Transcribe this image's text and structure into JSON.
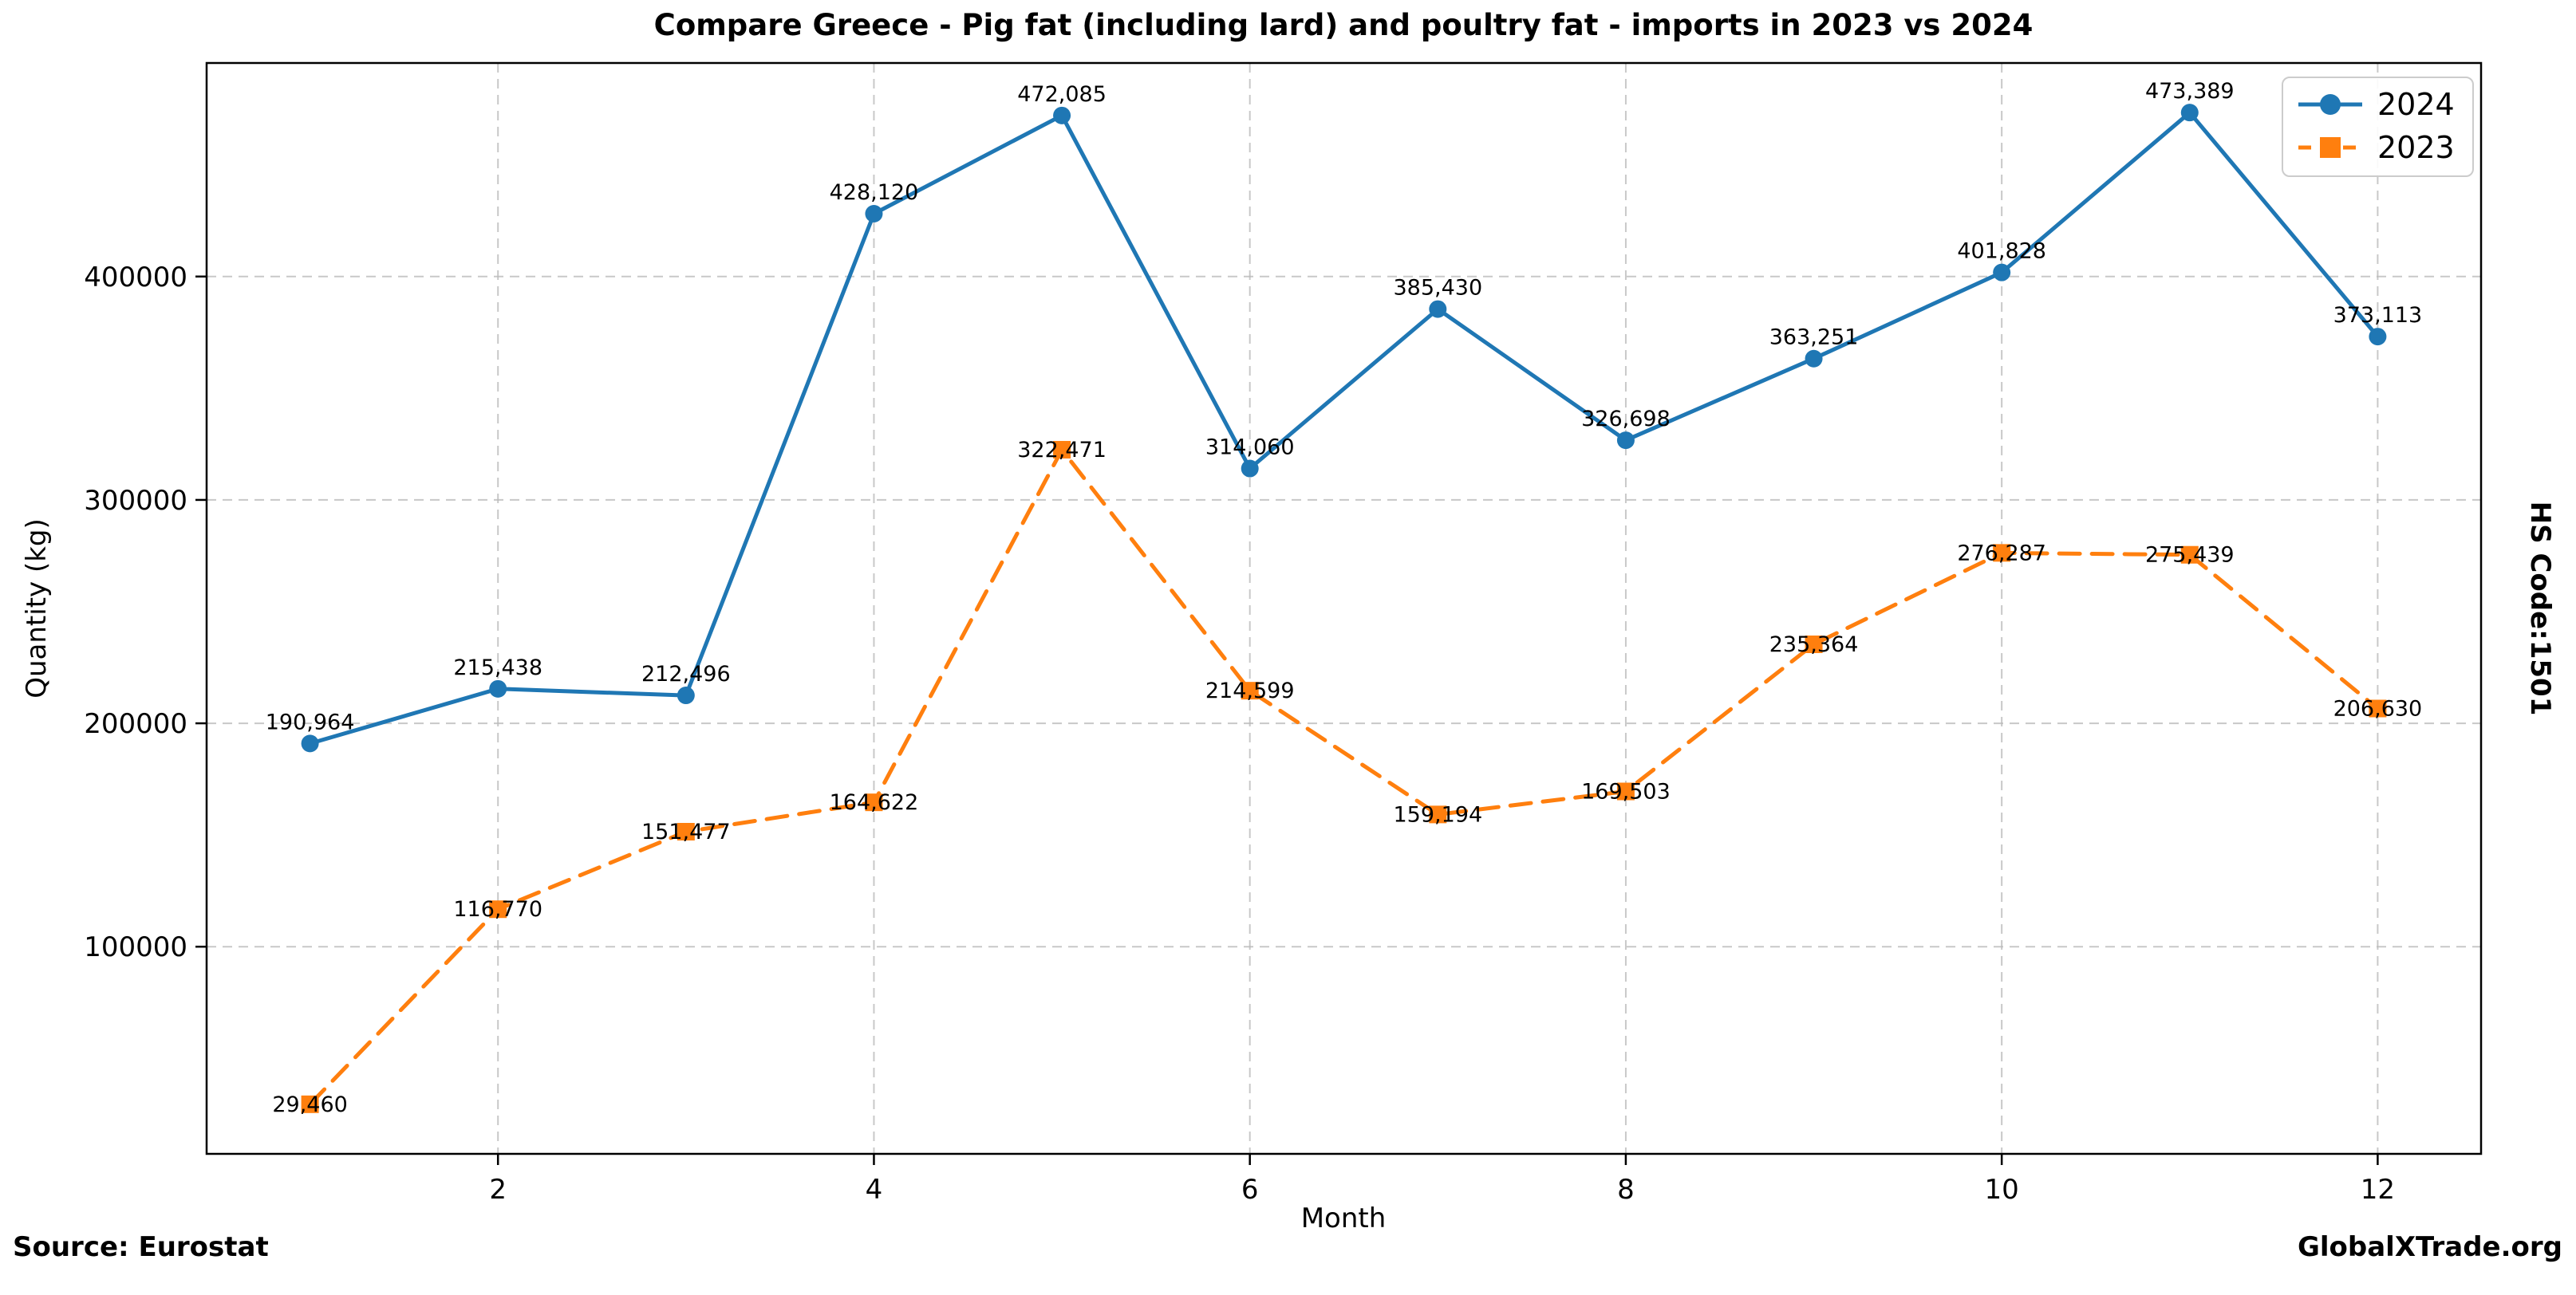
{
  "chart_data": {
    "type": "line",
    "title": "Compare Greece - Pig fat (including lard) and poultry fat - imports in 2023 vs 2024",
    "xlabel": "Month",
    "ylabel": "Quantity (kg)",
    "right_axis_label": "HS Code:1501",
    "x": [
      1,
      2,
      3,
      4,
      5,
      6,
      7,
      8,
      9,
      10,
      11,
      12
    ],
    "xticks": [
      2,
      4,
      6,
      8,
      10,
      12
    ],
    "yticks": [
      100000,
      200000,
      300000,
      400000
    ],
    "xlim": [
      0.45,
      12.55
    ],
    "ylim": [
      7264,
      495586
    ],
    "grid": true,
    "legend_position": "upper right",
    "series": [
      {
        "name": "2024",
        "color": "#1f77b4",
        "line_style": "solid",
        "marker": "circle",
        "label_placement": "above",
        "values": [
          190964,
          215438,
          212496,
          428120,
          472085,
          314060,
          385430,
          326698,
          363251,
          401828,
          473389,
          373113
        ]
      },
      {
        "name": "2023",
        "color": "#ff7f0e",
        "line_style": "dashed",
        "marker": "square",
        "label_placement": "center",
        "values": [
          29460,
          116770,
          151477,
          164622,
          322471,
          214599,
          159194,
          169503,
          235364,
          276287,
          275439,
          206630
        ]
      }
    ]
  },
  "footer": {
    "source": "Source: Eurostat",
    "watermark": "GlobalXTrade.org"
  },
  "colors": {
    "series_2024": "#1f77b4",
    "series_2023": "#ff7f0e",
    "grid": "#bbbbbb",
    "spine": "#000000"
  }
}
